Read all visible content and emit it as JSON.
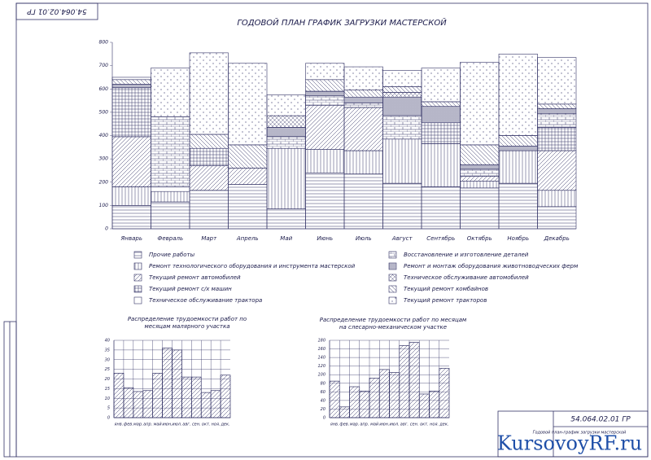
{
  "drawing": {
    "code": "54.064.02.01 ГР",
    "stamp_title": "Годовой план-график загрузки мастерской",
    "watermark": "KursovoyRF.ru"
  },
  "chart_data": [
    {
      "type": "stacked-bar",
      "title": "ГОДОВОЙ ПЛАН ГРАФИК ЗАГРУЗКИ МАСТЕРСКОЙ",
      "categories": [
        "Январь",
        "Февраль",
        "Март",
        "Апрель",
        "Май",
        "Июнь",
        "Июль",
        "Август",
        "Сентябрь",
        "Октябрь",
        "Ноябрь",
        "Декабрь"
      ],
      "ylim": [
        0,
        800
      ],
      "yticks": [
        0,
        100,
        200,
        300,
        400,
        500,
        600,
        700,
        800
      ],
      "grid": false,
      "series": [
        {
          "name": "Прочие работы",
          "pattern": "horizontal",
          "color": "#333366",
          "values": [
            100,
            115,
            165,
            190,
            85,
            240,
            235,
            195,
            180,
            175,
            195,
            95
          ]
        },
        {
          "name": "Ремонт технологического оборудования и инструмента мастерской",
          "pattern": "vertical",
          "color": "#333366",
          "values": [
            80,
            45,
            0,
            0,
            260,
            100,
            100,
            190,
            185,
            30,
            140,
            70
          ]
        },
        {
          "name": "Текущий ремонт автомобилей",
          "pattern": "diag",
          "color": "#333366",
          "values": [
            215,
            0,
            105,
            70,
            0,
            190,
            185,
            0,
            0,
            20,
            0,
            170
          ]
        },
        {
          "name": "Текущий ремонт с/х машин",
          "pattern": "grid",
          "color": "#333366",
          "values": [
            210,
            0,
            75,
            0,
            0,
            0,
            0,
            0,
            90,
            0,
            0,
            100
          ]
        },
        {
          "name": "Техническое обслуживание трактора",
          "pattern": "blank",
          "color": "#333366",
          "values": [
            0,
            20,
            0,
            0,
            0,
            0,
            0,
            0,
            0,
            0,
            0,
            0
          ]
        },
        {
          "name": "Восстановление и изготовление деталей",
          "pattern": "brick",
          "color": "#333366",
          "values": [
            0,
            300,
            0,
            0,
            50,
            40,
            20,
            100,
            0,
            30,
            0,
            60
          ]
        },
        {
          "name": "Ремонт и монтаж оборудования животноводческих ферм",
          "pattern": "cross",
          "color": "#333366",
          "values": [
            15,
            0,
            0,
            0,
            40,
            20,
            25,
            80,
            70,
            20,
            20,
            20
          ]
        },
        {
          "name": "Техническое обслуживание автомобилей",
          "pattern": "diag-grid",
          "color": "#333366",
          "values": [
            0,
            0,
            0,
            0,
            50,
            0,
            0,
            20,
            0,
            0,
            0,
            0
          ]
        },
        {
          "name": "Текущий ремонт комбайнов",
          "pattern": "diag-back",
          "color": "#333366",
          "values": [
            20,
            0,
            60,
            100,
            0,
            50,
            30,
            25,
            20,
            85,
            45,
            20
          ]
        },
        {
          "name": "Текущий ремонт тракторов",
          "pattern": "dots",
          "color": "#333366",
          "values": [
            10,
            210,
            350,
            350,
            90,
            70,
            100,
            70,
            145,
            355,
            350,
            200
          ]
        }
      ]
    },
    {
      "type": "bar",
      "title": [
        "Распределение трудоемкости работ по",
        "месяцам малярного участка"
      ],
      "categories": [
        "янв.",
        "фев.",
        "мар.",
        "апр.",
        "май",
        "июн.",
        "июл.",
        "авг.",
        "сен.",
        "окт.",
        "ноя.",
        "дек."
      ],
      "values": [
        23,
        15.5,
        13.5,
        14,
        23,
        36,
        35,
        21,
        21,
        13,
        14,
        22
      ],
      "color": "#333366",
      "ylim": [
        0,
        40
      ],
      "yticks": [
        0,
        5,
        10,
        15,
        20,
        25,
        30,
        35,
        40
      ],
      "grid": true
    },
    {
      "type": "bar",
      "title": [
        "Распределение трудоемкости работ по месяцам",
        "на слесарно-механическом участке"
      ],
      "categories": [
        "янв.",
        "фев.",
        "мар.",
        "апр.",
        "май",
        "июн.",
        "июл.",
        "авг.",
        "сен.",
        "окт.",
        "ноя.",
        "дек."
      ],
      "values": [
        85,
        25,
        72,
        62,
        92,
        112,
        105,
        168,
        175,
        55,
        62,
        115
      ],
      "color": "#333366",
      "ylim": [
        0,
        180
      ],
      "yticks": [
        0,
        20,
        40,
        60,
        80,
        100,
        120,
        140,
        160,
        180
      ],
      "grid": true
    }
  ]
}
